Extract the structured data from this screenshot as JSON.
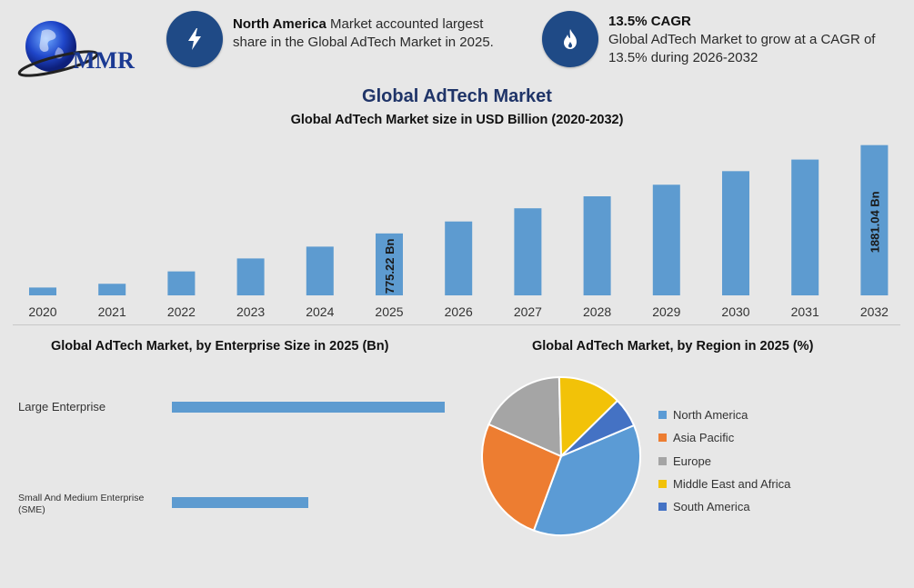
{
  "logo": {
    "text": "MMR"
  },
  "info_cards": [
    {
      "icon": "lightning-icon",
      "bold": "North America",
      "line1_rest": " Market accounted largest",
      "line2": "share in the Global AdTech Market in 2025."
    },
    {
      "icon": "flame-icon",
      "bold": "13.5% CAGR",
      "line1": "Global AdTech Market to grow at a CAGR of",
      "line2": "13.5% during 2026-2032"
    }
  ],
  "title": "Global AdTech Market",
  "subtitle": "Global AdTech Market size in USD Billion (2020-2032)",
  "colors": {
    "bar": "#5d9bd0",
    "navy": "#1f4a86"
  },
  "chart_data": [
    {
      "type": "bar",
      "title": "Global AdTech Market size in USD Billion (2020-2032)",
      "categories": [
        "2020",
        "2021",
        "2022",
        "2023",
        "2024",
        "2025",
        "2026",
        "2027",
        "2028",
        "2029",
        "2030",
        "2031",
        "2032"
      ],
      "values": [
        98,
        145,
        300,
        462,
        610,
        775.22,
        925,
        1090,
        1240,
        1385,
        1555,
        1700,
        1881.04
      ],
      "ylim": [
        0,
        1900
      ],
      "data_labels": [
        {
          "category": "2025",
          "text": "775.22 Bn"
        },
        {
          "category": "2032",
          "text": "1881.04 Bn"
        }
      ],
      "grid": false
    },
    {
      "type": "bar",
      "orientation": "horizontal",
      "title": "Global AdTech Market, by Enterprise Size in 2025 (Bn)",
      "categories": [
        "Large Enterprise",
        "Small And Medium Enterprise (SME)"
      ],
      "category_lines": [
        [
          "Large Enterprise"
        ],
        [
          "Small And Medium Enterprise",
          "(SME)"
        ]
      ],
      "values": [
        490,
        245
      ],
      "xlim": [
        0,
        500
      ]
    },
    {
      "type": "pie",
      "title": "Global AdTech Market, by Region in 2025 (%)",
      "labels": [
        "North America",
        "Asia Pacific",
        "Europe",
        "Middle East and Africa",
        "South America"
      ],
      "values": [
        37,
        26,
        18,
        13,
        6
      ],
      "colors": [
        "#5b9bd5",
        "#ed7d31",
        "#a5a5a5",
        "#f2c208",
        "#4472c4"
      ],
      "legend": "right"
    }
  ]
}
